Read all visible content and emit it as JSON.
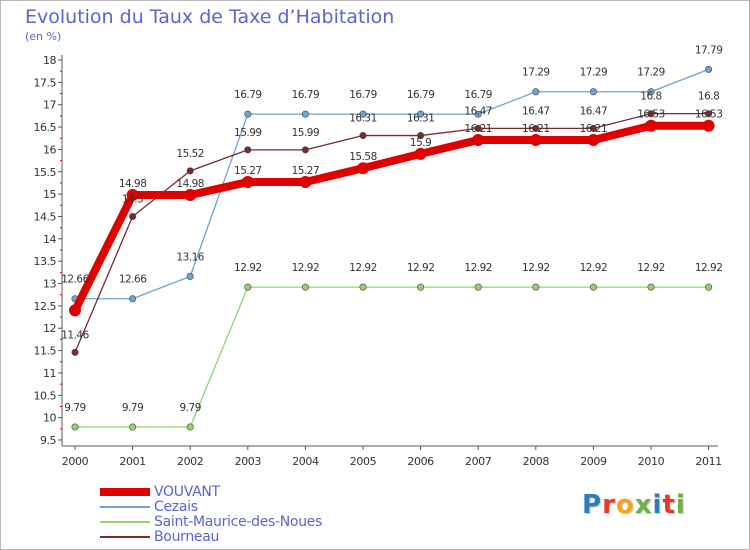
{
  "title": "Evolution du Taux de Taxe d’Habitation",
  "subtitle": "(en %)",
  "logo": {
    "text": "Proxiti",
    "colors": [
      "#2b7bbf",
      "#e5392a",
      "#f3a51c",
      "#6bb33c",
      "#2b7bbf",
      "#e5392a",
      "#6bb33c"
    ]
  },
  "chart_data": {
    "type": "line",
    "x": [
      "2000",
      "2001",
      "2002",
      "2003",
      "2004",
      "2005",
      "2006",
      "2007",
      "2008",
      "2009",
      "2010",
      "2011"
    ],
    "ylim": [
      9.5,
      18
    ],
    "yticks": [
      "9.5",
      "10",
      "10.5",
      "11",
      "11.5",
      "12",
      "12.5",
      "13",
      "13.5",
      "14",
      "14.5",
      "15",
      "15.5",
      "16",
      "16.5",
      "17",
      "17.5",
      "18"
    ],
    "grid": false,
    "legend": "bottom-left",
    "series": [
      {
        "name": "VOUVANT",
        "color": "#e00000",
        "values": [
          12.4,
          14.98,
          14.98,
          15.27,
          15.27,
          15.58,
          15.9,
          16.21,
          16.21,
          16.21,
          16.53,
          16.53
        ],
        "labels": [
          "",
          "14.98",
          "14.98",
          "15.27",
          "15.27",
          "15.58",
          "15.9",
          "16.21",
          "16.21",
          "16.21",
          "16.53",
          "16.53"
        ]
      },
      {
        "name": "Cezais",
        "color": "#6fa3d3",
        "values": [
          12.66,
          12.66,
          13.16,
          16.79,
          16.79,
          16.79,
          16.79,
          16.79,
          17.29,
          17.29,
          17.29,
          17.79
        ],
        "labels": [
          "12.66",
          "12.66",
          "13.16",
          "16.79",
          "16.79",
          "16.79",
          "16.79",
          "16.79",
          "17.29",
          "17.29",
          "17.29",
          "17.79"
        ]
      },
      {
        "name": "Saint-Maurice-des-Noues",
        "color": "#93d46a",
        "values": [
          9.79,
          9.79,
          9.79,
          12.92,
          12.92,
          12.92,
          12.92,
          12.92,
          12.92,
          12.92,
          12.92,
          12.92
        ],
        "labels": [
          "9.79",
          "9.79",
          "9.79",
          "12.92",
          "12.92",
          "12.92",
          "12.92",
          "12.92",
          "12.92",
          "12.92",
          "12.92",
          "12.92"
        ]
      },
      {
        "name": "Bourneau",
        "color": "#7a2a2a",
        "values": [
          11.46,
          14.5,
          15.52,
          15.99,
          15.99,
          16.31,
          16.31,
          16.47,
          16.47,
          16.47,
          16.8,
          16.8
        ],
        "labels": [
          "11.46",
          "14.5",
          "15.52",
          "15.99",
          "15.99",
          "16.31",
          "16.31",
          "16.47",
          "16.47",
          "16.47",
          "16.8",
          "16.8"
        ]
      }
    ]
  }
}
